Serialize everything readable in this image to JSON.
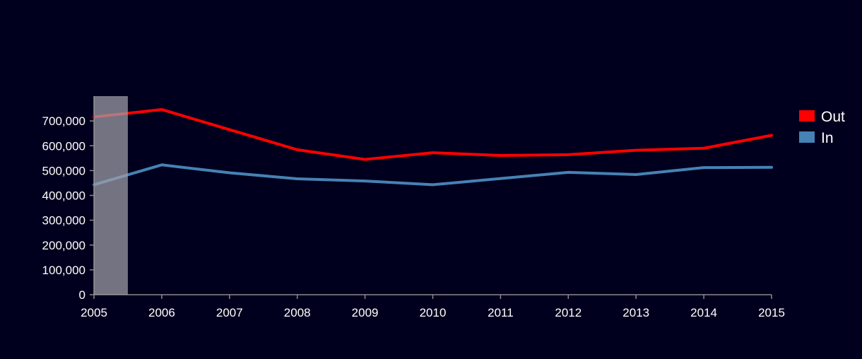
{
  "chart_data": {
    "type": "line",
    "x": [
      2005,
      2006,
      2007,
      2008,
      2009,
      2010,
      2011,
      2012,
      2013,
      2014,
      2015
    ],
    "x_tick_labels": [
      "2005",
      "2006",
      "2007",
      "2008",
      "2009",
      "2010",
      "2011",
      "2012",
      "2013",
      "2014",
      "2015"
    ],
    "y_tick_values": [
      0,
      100000,
      200000,
      300000,
      400000,
      500000,
      600000,
      700000
    ],
    "y_tick_labels": [
      "0",
      "100,000",
      "200,000",
      "300,000",
      "400,000",
      "500,000",
      "600,000",
      "700,000"
    ],
    "ylim": [
      0,
      800000
    ],
    "xlim": [
      2005,
      2015
    ],
    "grid": false,
    "legend_position": "right",
    "highlight_band": {
      "from": 2005,
      "to": 2005.5,
      "color": "#a0a0a8"
    },
    "series": [
      {
        "name": "Out",
        "color": "#ff0000",
        "values": [
          716000,
          746000,
          665000,
          584000,
          545000,
          572000,
          561000,
          564000,
          582000,
          590000,
          642000
        ]
      },
      {
        "name": "In",
        "color": "#4682b4",
        "values": [
          443000,
          523000,
          491000,
          467000,
          458000,
          443000,
          468000,
          493000,
          484000,
          512000,
          513000
        ]
      }
    ]
  }
}
